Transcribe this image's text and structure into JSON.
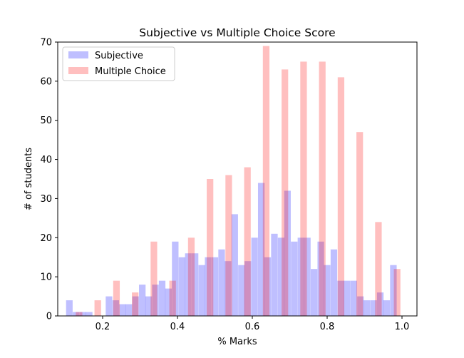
{
  "chart_data": {
    "type": "bar",
    "title": "Subjective vs Multiple Choice Score",
    "xlabel": "% Marks",
    "ylabel": "# of students",
    "xlim": [
      0.08,
      1.04
    ],
    "ylim": [
      0,
      70
    ],
    "xticks": [
      0.2,
      0.4,
      0.6,
      0.8,
      1.0
    ],
    "xtick_labels": [
      "0.2",
      "0.4",
      "0.6",
      "0.8",
      "1.0"
    ],
    "yticks": [
      0,
      10,
      20,
      30,
      40,
      50,
      60,
      70
    ],
    "ytick_labels": [
      "0",
      "10",
      "20",
      "30",
      "40",
      "50",
      "60",
      "70"
    ],
    "grid": false,
    "legend_position": "top-left",
    "series": [
      {
        "name": "Subjective",
        "color": "#0000ff",
        "opacity": 0.25,
        "bin_width": 0.0176,
        "x": [
          0.111,
          0.129,
          0.147,
          0.164,
          0.182,
          0.2,
          0.217,
          0.235,
          0.253,
          0.27,
          0.288,
          0.306,
          0.323,
          0.341,
          0.359,
          0.376,
          0.394,
          0.412,
          0.429,
          0.447,
          0.465,
          0.482,
          0.5,
          0.518,
          0.535,
          0.553,
          0.571,
          0.588,
          0.606,
          0.624,
          0.641,
          0.659,
          0.677,
          0.694,
          0.712,
          0.73,
          0.747,
          0.765,
          0.783,
          0.8,
          0.818,
          0.836,
          0.853,
          0.871,
          0.889,
          0.906,
          0.924,
          0.942,
          0.959,
          0.977
        ],
        "values": [
          4,
          1,
          1,
          1,
          0,
          0,
          5,
          4,
          3,
          3,
          5,
          8,
          5,
          8,
          9,
          7,
          19,
          15,
          16,
          16,
          13,
          15,
          15,
          17,
          14,
          26,
          13,
          14,
          20,
          34,
          15,
          21,
          20,
          32,
          19,
          20,
          20,
          12,
          19,
          13,
          17,
          9,
          9,
          9,
          5,
          4,
          4,
          6,
          4,
          13
        ]
      },
      {
        "name": "Multiple Choice",
        "color": "#ff0000",
        "opacity": 0.25,
        "bin_width": 0.0176,
        "x": [
          0.137,
          0.187,
          0.237,
          0.287,
          0.337,
          0.387,
          0.437,
          0.487,
          0.537,
          0.587,
          0.637,
          0.687,
          0.737,
          0.787,
          0.837,
          0.887,
          0.937,
          0.987
        ],
        "values": [
          1,
          4,
          9,
          6,
          19,
          9,
          20,
          35,
          36,
          38,
          69,
          63,
          65,
          65,
          61,
          47,
          24,
          12
        ]
      }
    ]
  }
}
